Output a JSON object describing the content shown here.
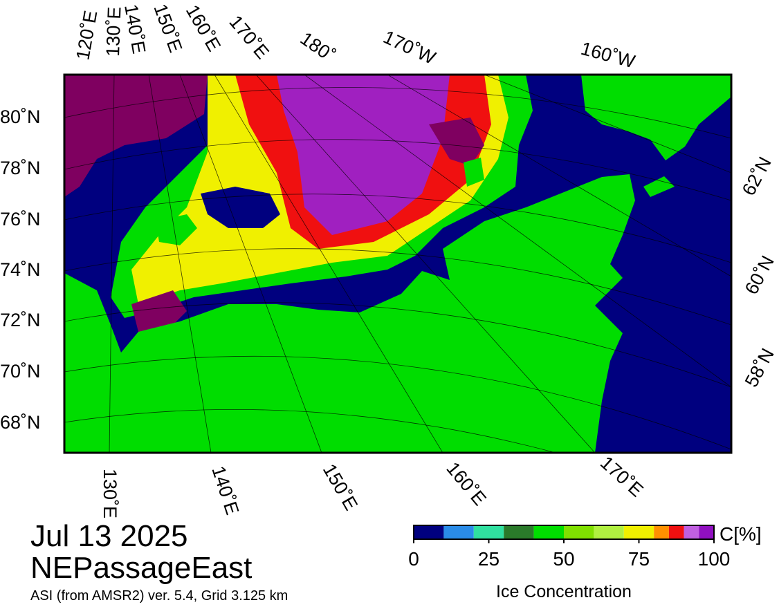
{
  "map": {
    "lon_top": [
      "120˚E",
      "130˚E",
      "140˚E",
      "150˚E",
      "160˚E",
      "170˚E",
      "180˚",
      "170˚W",
      "160˚W"
    ],
    "lat_left": [
      "80˚N",
      "78˚N",
      "76˚N",
      "74˚N",
      "72˚N",
      "70˚N",
      "68˚N"
    ],
    "lat_right": [
      "62˚N",
      "60˚N",
      "58˚N"
    ],
    "lon_bottom": [
      "130˚E",
      "140˚E",
      "150˚E",
      "160˚E",
      "170˚E"
    ]
  },
  "caption": {
    "date": "Jul 13 2025",
    "region": "NEPassageEast",
    "source": "ASI (from AMSR2) ver. 5.4,  Grid 3.125 km"
  },
  "colorbar": {
    "label": "Ice Concentration",
    "unit": "C[%]",
    "bounds": [
      0,
      10,
      20,
      30,
      40,
      50,
      60,
      70,
      80,
      85,
      90,
      95,
      100
    ],
    "colors": [
      "#00007f",
      "#2a8ce8",
      "#30e0a0",
      "#2a7a2a",
      "#00dd00",
      "#80e000",
      "#b0f040",
      "#f0f000",
      "#ff9000",
      "#f01010",
      "#c060e0",
      "#9010c0"
    ],
    "ticks": [
      0,
      25,
      50,
      75,
      100
    ]
  }
}
